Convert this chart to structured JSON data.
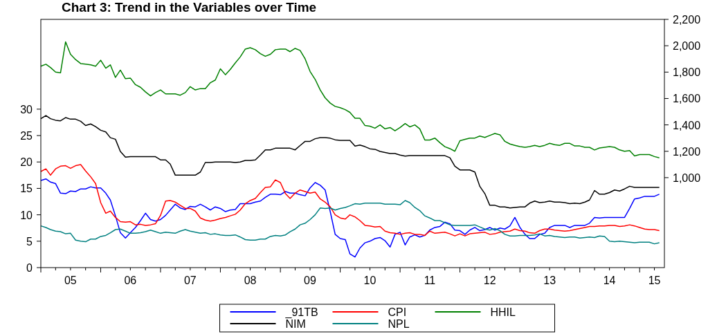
{
  "chart_data": {
    "type": "line",
    "title": "Chart 3: Trend in the Variables over Time",
    "x": [
      "2005-01",
      "2005-02",
      "2005-03",
      "2005-04",
      "2005-05",
      "2005-06",
      "2005-07",
      "2005-08",
      "2005-09",
      "2005-10",
      "2005-11",
      "2005-12",
      "2006-01",
      "2006-02",
      "2006-03",
      "2006-04",
      "2006-05",
      "2006-06",
      "2006-07",
      "2006-08",
      "2006-09",
      "2006-10",
      "2006-11",
      "2006-12",
      "2007-01",
      "2007-02",
      "2007-03",
      "2007-04",
      "2007-05",
      "2007-06",
      "2007-07",
      "2007-08",
      "2007-09",
      "2007-10",
      "2007-11",
      "2007-12",
      "2008-01",
      "2008-02",
      "2008-03",
      "2008-04",
      "2008-05",
      "2008-06",
      "2008-07",
      "2008-08",
      "2008-09",
      "2008-10",
      "2008-11",
      "2008-12",
      "2009-01",
      "2009-02",
      "2009-03",
      "2009-04",
      "2009-05",
      "2009-06",
      "2009-07",
      "2009-08",
      "2009-09",
      "2009-10",
      "2009-11",
      "2009-12",
      "2010-01",
      "2010-02",
      "2010-03",
      "2010-04",
      "2010-05",
      "2010-06",
      "2010-07",
      "2010-08",
      "2010-09",
      "2010-10",
      "2010-11",
      "2010-12",
      "2011-01",
      "2011-02",
      "2011-03",
      "2011-04",
      "2011-05",
      "2011-06",
      "2011-07",
      "2011-08",
      "2011-09",
      "2011-10",
      "2011-11",
      "2011-12",
      "2012-01",
      "2012-02",
      "2012-03",
      "2012-04",
      "2012-05",
      "2012-06",
      "2012-07",
      "2012-08",
      "2012-09",
      "2012-10",
      "2012-11",
      "2012-12",
      "2013-01",
      "2013-02",
      "2013-03",
      "2013-04",
      "2013-05",
      "2013-06",
      "2013-07",
      "2013-08",
      "2013-09",
      "2013-10",
      "2013-11",
      "2013-12",
      "2014-01",
      "2014-02",
      "2014-03",
      "2014-04",
      "2014-05",
      "2014-06",
      "2014-07",
      "2014-08",
      "2014-09",
      "2014-10",
      "2014-11",
      "2014-12",
      "2015-01",
      "2015-02",
      "2015-03",
      "2015-04",
      "2015-05"
    ],
    "xlim": [
      "2005-01",
      "2015-06"
    ],
    "xticks": [
      {
        "value": "2005-01",
        "label": null
      },
      {
        "value": "2005-04",
        "label": null
      },
      {
        "value": "2005-07",
        "label": "05"
      },
      {
        "value": "2005-10",
        "label": null
      },
      {
        "value": "2006-01",
        "label": null
      },
      {
        "value": "2006-04",
        "label": null
      },
      {
        "value": "2006-07",
        "label": "06"
      },
      {
        "value": "2006-10",
        "label": null
      },
      {
        "value": "2007-01",
        "label": null
      },
      {
        "value": "2007-04",
        "label": null
      },
      {
        "value": "2007-07",
        "label": "07"
      },
      {
        "value": "2007-10",
        "label": null
      },
      {
        "value": "2008-01",
        "label": null
      },
      {
        "value": "2008-04",
        "label": null
      },
      {
        "value": "2008-07",
        "label": "08"
      },
      {
        "value": "2008-10",
        "label": null
      },
      {
        "value": "2009-01",
        "label": null
      },
      {
        "value": "2009-04",
        "label": null
      },
      {
        "value": "2009-07",
        "label": "09"
      },
      {
        "value": "2009-10",
        "label": null
      },
      {
        "value": "2010-01",
        "label": null
      },
      {
        "value": "2010-04",
        "label": null
      },
      {
        "value": "2010-07",
        "label": "10"
      },
      {
        "value": "2010-10",
        "label": null
      },
      {
        "value": "2011-01",
        "label": null
      },
      {
        "value": "2011-04",
        "label": null
      },
      {
        "value": "2011-07",
        "label": "11"
      },
      {
        "value": "2011-10",
        "label": null
      },
      {
        "value": "2012-01",
        "label": null
      },
      {
        "value": "2012-04",
        "label": null
      },
      {
        "value": "2012-07",
        "label": "12"
      },
      {
        "value": "2012-10",
        "label": null
      },
      {
        "value": "2013-01",
        "label": null
      },
      {
        "value": "2013-04",
        "label": null
      },
      {
        "value": "2013-07",
        "label": "13"
      },
      {
        "value": "2013-10",
        "label": null
      },
      {
        "value": "2014-01",
        "label": null
      },
      {
        "value": "2014-04",
        "label": null
      },
      {
        "value": "2014-07",
        "label": "14"
      },
      {
        "value": "2014-10",
        "label": null
      },
      {
        "value": "2015-01",
        "label": null
      },
      {
        "value": "2015-04",
        "label": "15"
      }
    ],
    "ylim": [
      0,
      47
    ],
    "yticks": [
      0,
      5,
      10,
      15,
      20,
      25,
      30
    ],
    "y2lim": [
      318,
      2200
    ],
    "y2ticks": [
      {
        "value": 1000,
        "label": "1,000"
      },
      {
        "value": 1200,
        "label": "1,200"
      },
      {
        "value": 1400,
        "label": "1,400"
      },
      {
        "value": 1600,
        "label": "1,600"
      },
      {
        "value": 1800,
        "label": "1,800"
      },
      {
        "value": 2000,
        "label": "2,000"
      },
      {
        "value": 2200,
        "label": "2,200"
      }
    ],
    "grid": false,
    "legend": "bottom",
    "line_style": "solid",
    "marker": "none",
    "series": [
      {
        "name": "_91TB",
        "color": "#0000ff",
        "values": [
          16.5,
          16.8,
          16.2,
          15.9,
          14.1,
          14.0,
          14.5,
          14.4,
          14.9,
          14.9,
          15.3,
          15.1,
          15.1,
          14.1,
          12.8,
          9.8,
          6.6,
          5.6,
          6.6,
          7.6,
          8.9,
          10.3,
          9.1,
          8.8,
          9.1,
          9.9,
          10.9,
          12.0,
          11.3,
          11.0,
          11.6,
          11.5,
          12.0,
          11.5,
          10.9,
          11.5,
          11.2,
          10.6,
          10.9,
          11.0,
          12.1,
          12.1,
          12.1,
          12.4,
          12.6,
          13.3,
          13.9,
          13.9,
          13.8,
          14.4,
          14.1,
          14.1,
          13.8,
          13.6,
          15.1,
          16.1,
          15.6,
          14.7,
          10.6,
          6.3,
          5.5,
          5.3,
          2.6,
          2.0,
          3.7,
          4.7,
          5.0,
          5.5,
          5.7,
          5.1,
          3.9,
          6.3,
          6.7,
          4.3,
          5.8,
          6.2,
          5.8,
          6.1,
          7.1,
          7.6,
          7.8,
          8.6,
          8.3,
          7.1,
          7.0,
          6.3,
          7.1,
          7.6,
          7.0,
          7.2,
          7.6,
          7.1,
          7.5,
          7.3,
          7.9,
          9.5,
          7.6,
          6.3,
          5.5,
          5.5,
          6.3,
          6.5,
          7.6,
          8.0,
          8.0,
          8.0,
          7.6,
          8.0,
          8.0,
          8.0,
          8.4,
          9.5,
          9.4,
          9.5,
          9.5,
          9.5,
          9.5,
          9.5,
          11.2,
          13.0,
          13.2,
          13.5,
          13.5,
          13.5,
          13.9
        ]
      },
      {
        "name": "CPI",
        "color": "#ff0000",
        "values": [
          18.2,
          18.7,
          17.5,
          18.7,
          19.2,
          19.3,
          18.8,
          19.3,
          19.5,
          18.3,
          17.2,
          15.9,
          12.3,
          10.3,
          10.7,
          9.5,
          8.7,
          8.6,
          8.7,
          8.1,
          8.2,
          8.0,
          8.1,
          8.3,
          9.9,
          12.6,
          12.7,
          12.4,
          11.8,
          11.2,
          11.2,
          10.7,
          9.4,
          9.0,
          8.8,
          9.0,
          9.3,
          9.5,
          9.8,
          10.1,
          10.9,
          12.1,
          12.7,
          13.1,
          14.2,
          15.2,
          15.3,
          16.6,
          16.1,
          14.0,
          13.1,
          14.1,
          14.7,
          14.4,
          14.1,
          14.3,
          13.0,
          12.4,
          11.5,
          10.0,
          9.4,
          9.2,
          10.0,
          9.6,
          8.9,
          8.0,
          7.9,
          7.7,
          7.8,
          6.9,
          6.6,
          6.5,
          6.3,
          6.5,
          6.6,
          6.3,
          6.3,
          6.1,
          6.9,
          6.5,
          6.6,
          6.7,
          6.4,
          6.0,
          6.4,
          6.0,
          6.4,
          6.5,
          6.6,
          6.7,
          6.3,
          6.4,
          6.7,
          6.8,
          6.9,
          7.3,
          7.0,
          6.9,
          6.6,
          6.5,
          7.0,
          7.3,
          7.3,
          7.1,
          7.0,
          6.9,
          7.0,
          7.2,
          7.4,
          7.6,
          7.8,
          7.8,
          7.9,
          7.9,
          8.0,
          8.0,
          7.8,
          7.9,
          8.1,
          7.9,
          7.6,
          7.3,
          7.2,
          7.2,
          7.0
        ]
      },
      {
        "name": "HHIL",
        "color": "#008000",
        "axis": "y2",
        "values": [
          1845,
          1860,
          1835,
          1800,
          1795,
          2030,
          1935,
          1895,
          1865,
          1860,
          1855,
          1845,
          1890,
          1830,
          1855,
          1760,
          1815,
          1750,
          1755,
          1705,
          1685,
          1650,
          1620,
          1645,
          1665,
          1635,
          1635,
          1635,
          1625,
          1645,
          1690,
          1665,
          1675,
          1675,
          1720,
          1740,
          1825,
          1780,
          1820,
          1870,
          1915,
          1975,
          1985,
          1970,
          1940,
          1920,
          1935,
          1970,
          1975,
          1975,
          1955,
          1980,
          1965,
          1900,
          1805,
          1745,
          1665,
          1605,
          1565,
          1540,
          1530,
          1515,
          1495,
          1450,
          1450,
          1395,
          1390,
          1375,
          1400,
          1370,
          1380,
          1355,
          1380,
          1410,
          1385,
          1400,
          1370,
          1285,
          1285,
          1300,
          1265,
          1235,
          1220,
          1200,
          1280,
          1290,
          1300,
          1300,
          1315,
          1305,
          1320,
          1335,
          1325,
          1275,
          1255,
          1245,
          1235,
          1230,
          1235,
          1245,
          1235,
          1245,
          1260,
          1250,
          1245,
          1260,
          1260,
          1240,
          1240,
          1230,
          1230,
          1210,
          1225,
          1230,
          1235,
          1230,
          1210,
          1200,
          1205,
          1165,
          1175,
          1175,
          1175,
          1160,
          1150
        ]
      },
      {
        "name": "NIM",
        "color": "#000000",
        "values": [
          28.2,
          28.8,
          28.2,
          27.9,
          27.8,
          28.4,
          28.1,
          28.1,
          27.7,
          26.9,
          27.2,
          26.7,
          26.0,
          25.7,
          24.6,
          24.3,
          22.0,
          20.9,
          21.0,
          21.0,
          21.0,
          21.0,
          21.0,
          21.0,
          20.4,
          20.4,
          19.6,
          17.5,
          17.5,
          17.5,
          17.5,
          17.5,
          18.1,
          19.9,
          19.9,
          20.0,
          20.0,
          20.0,
          20.0,
          19.9,
          20.0,
          20.3,
          20.3,
          20.4,
          21.3,
          22.3,
          22.3,
          22.6,
          22.6,
          22.6,
          22.6,
          22.3,
          23.1,
          23.9,
          23.9,
          24.4,
          24.6,
          24.6,
          24.5,
          24.2,
          24.1,
          24.1,
          24.1,
          23.0,
          23.2,
          22.9,
          22.5,
          22.4,
          22.0,
          21.8,
          21.6,
          21.6,
          21.3,
          21.1,
          21.2,
          21.2,
          21.2,
          21.2,
          21.2,
          21.2,
          21.2,
          21.2,
          20.8,
          19.2,
          18.5,
          18.5,
          18.5,
          18.1,
          15.4,
          14.0,
          11.8,
          11.8,
          11.5,
          11.5,
          11.3,
          11.4,
          11.5,
          11.5,
          12.2,
          12.6,
          12.3,
          12.4,
          12.6,
          12.4,
          12.4,
          12.3,
          12.1,
          12.2,
          12.1,
          12.4,
          12.8,
          14.6,
          13.9,
          13.9,
          14.2,
          14.7,
          14.5,
          14.9,
          15.4,
          15.2,
          15.2,
          15.2,
          15.2,
          15.2,
          15.2
        ]
      },
      {
        "name": "NPL",
        "color": "#008080",
        "values": [
          7.9,
          7.6,
          7.2,
          6.9,
          6.8,
          6.4,
          6.5,
          5.2,
          5.0,
          4.9,
          5.4,
          5.4,
          5.9,
          6.1,
          6.6,
          7.2,
          7.3,
          6.9,
          6.5,
          6.5,
          6.6,
          6.8,
          7.1,
          6.8,
          6.5,
          6.7,
          6.6,
          6.5,
          6.9,
          7.2,
          6.9,
          6.7,
          6.5,
          6.6,
          6.3,
          6.4,
          6.2,
          6.1,
          6.1,
          6.2,
          5.8,
          5.3,
          5.2,
          5.2,
          5.4,
          5.4,
          5.9,
          6.1,
          6.0,
          6.2,
          6.8,
          7.3,
          8.1,
          8.4,
          9.1,
          10.0,
          11.3,
          11.2,
          11.3,
          10.9,
          11.2,
          11.4,
          11.7,
          12.1,
          12.0,
          12.2,
          12.2,
          12.2,
          12.2,
          12.0,
          12.0,
          12.0,
          11.9,
          12.7,
          12.3,
          11.4,
          10.8,
          9.8,
          9.4,
          8.9,
          8.9,
          8.5,
          8.1,
          8.0,
          8.0,
          8.0,
          8.0,
          8.1,
          7.7,
          7.3,
          7.1,
          7.4,
          7.0,
          6.3,
          6.0,
          6.0,
          6.1,
          6.1,
          6.1,
          6.2,
          6.4,
          6.0,
          6.1,
          5.9,
          5.8,
          5.7,
          5.8,
          5.8,
          5.6,
          5.7,
          5.8,
          5.7,
          6.0,
          5.9,
          5.0,
          4.9,
          5.0,
          4.9,
          4.8,
          4.7,
          4.8,
          4.8,
          4.8,
          4.5,
          4.7
        ]
      }
    ]
  }
}
